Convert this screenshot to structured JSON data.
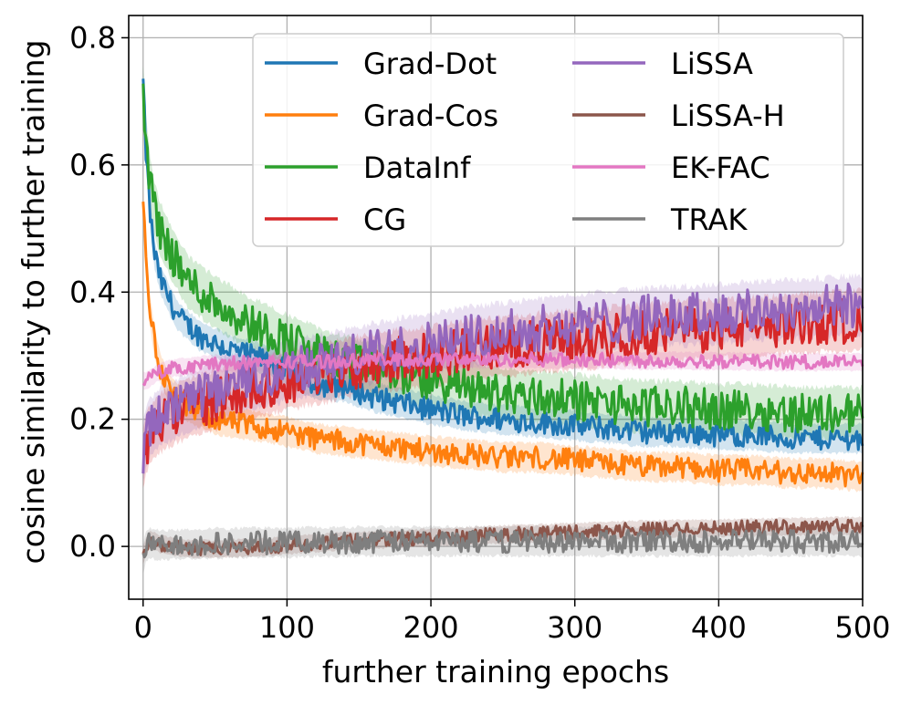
{
  "chart_data": {
    "type": "line",
    "title": "",
    "xlabel": "further training epochs",
    "ylabel": "cosine similarity to further training",
    "xlim": [
      -10,
      500
    ],
    "ylim": [
      -0.083,
      0.835
    ],
    "xticks": [
      0,
      100,
      200,
      300,
      400,
      500
    ],
    "xtick_labels": [
      "0",
      "100",
      "200",
      "300",
      "400",
      "500"
    ],
    "yticks": [
      0.0,
      0.2,
      0.4,
      0.6,
      0.8
    ],
    "ytick_labels": [
      "0.0",
      "0.2",
      "0.4",
      "0.6",
      "0.8"
    ],
    "grid": true,
    "legend_position": "top-right",
    "legend_columns": 2,
    "x_points": [
      0,
      2,
      5,
      8,
      12,
      16,
      20,
      25,
      30,
      40,
      50,
      60,
      75,
      90,
      100,
      120,
      140,
      160,
      180,
      200,
      225,
      250,
      275,
      300,
      325,
      350,
      375,
      400,
      425,
      450,
      475,
      500
    ],
    "series": [
      {
        "name": "Grad-Dot",
        "color": "#1f77b4",
        "band": 0.02,
        "values": [
          0.73,
          0.62,
          0.52,
          0.46,
          0.42,
          0.4,
          0.38,
          0.36,
          0.35,
          0.33,
          0.32,
          0.31,
          0.3,
          0.29,
          0.275,
          0.255,
          0.25,
          0.235,
          0.225,
          0.215,
          0.205,
          0.2,
          0.195,
          0.19,
          0.185,
          0.18,
          0.18,
          0.175,
          0.175,
          0.17,
          0.17,
          0.17
        ]
      },
      {
        "name": "Grad-Cos",
        "color": "#ff7f0e",
        "band": 0.02,
        "values": [
          0.54,
          0.45,
          0.37,
          0.32,
          0.28,
          0.26,
          0.24,
          0.23,
          0.22,
          0.21,
          0.2,
          0.195,
          0.19,
          0.185,
          0.18,
          0.17,
          0.165,
          0.16,
          0.155,
          0.15,
          0.145,
          0.14,
          0.14,
          0.135,
          0.13,
          0.125,
          0.125,
          0.12,
          0.12,
          0.115,
          0.115,
          0.11
        ]
      },
      {
        "name": "DataInf",
        "color": "#2ca02c",
        "band": 0.035,
        "values": [
          0.72,
          0.64,
          0.57,
          0.53,
          0.5,
          0.48,
          0.46,
          0.44,
          0.42,
          0.4,
          0.385,
          0.37,
          0.35,
          0.335,
          0.325,
          0.305,
          0.29,
          0.28,
          0.27,
          0.26,
          0.25,
          0.24,
          0.235,
          0.23,
          0.225,
          0.22,
          0.22,
          0.215,
          0.215,
          0.21,
          0.21,
          0.21
        ]
      },
      {
        "name": "CG",
        "color": "#d62728",
        "band": 0.04,
        "values": [
          0.14,
          0.16,
          0.175,
          0.185,
          0.195,
          0.2,
          0.205,
          0.21,
          0.215,
          0.225,
          0.23,
          0.24,
          0.25,
          0.255,
          0.26,
          0.27,
          0.28,
          0.29,
          0.295,
          0.3,
          0.31,
          0.315,
          0.32,
          0.325,
          0.33,
          0.335,
          0.34,
          0.342,
          0.346,
          0.35,
          0.353,
          0.356
        ]
      },
      {
        "name": "LiSSA",
        "color": "#9467bd",
        "band": 0.04,
        "values": [
          0.15,
          0.17,
          0.185,
          0.195,
          0.205,
          0.21,
          0.215,
          0.22,
          0.225,
          0.235,
          0.245,
          0.255,
          0.265,
          0.27,
          0.275,
          0.285,
          0.295,
          0.305,
          0.313,
          0.32,
          0.33,
          0.337,
          0.343,
          0.35,
          0.355,
          0.36,
          0.363,
          0.366,
          0.37,
          0.373,
          0.376,
          0.38
        ]
      },
      {
        "name": "LiSSA-H",
        "color": "#8c564b",
        "band": 0.012,
        "values": [
          -0.015,
          0.0,
          0.01,
          0.008,
          0.004,
          0.002,
          0.0,
          -0.002,
          -0.003,
          -0.004,
          -0.004,
          -0.003,
          -0.002,
          0.0,
          0.002,
          0.005,
          0.008,
          0.01,
          0.012,
          0.014,
          0.016,
          0.019,
          0.021,
          0.023,
          0.025,
          0.027,
          0.028,
          0.029,
          0.03,
          0.031,
          0.032,
          0.033
        ]
      },
      {
        "name": "EK-FAC",
        "color": "#e377c2",
        "band": 0.012,
        "values": [
          0.26,
          0.26,
          0.265,
          0.27,
          0.275,
          0.278,
          0.28,
          0.282,
          0.283,
          0.285,
          0.287,
          0.288,
          0.289,
          0.29,
          0.29,
          0.291,
          0.292,
          0.293,
          0.293,
          0.294,
          0.294,
          0.294,
          0.294,
          0.293,
          0.293,
          0.292,
          0.292,
          0.291,
          0.291,
          0.29,
          0.29,
          0.29
        ]
      },
      {
        "name": "TRAK",
        "color": "#7f7f7f",
        "band": 0.02,
        "values": [
          -0.02,
          0.0,
          0.005,
          0.003,
          0.002,
          0.002,
          0.003,
          0.003,
          0.004,
          0.004,
          0.005,
          0.005,
          0.006,
          0.006,
          0.006,
          0.007,
          0.007,
          0.008,
          0.008,
          0.008,
          0.008,
          0.008,
          0.008,
          0.008,
          0.008,
          0.008,
          0.008,
          0.008,
          0.008,
          0.008,
          0.008,
          0.007
        ]
      }
    ]
  }
}
